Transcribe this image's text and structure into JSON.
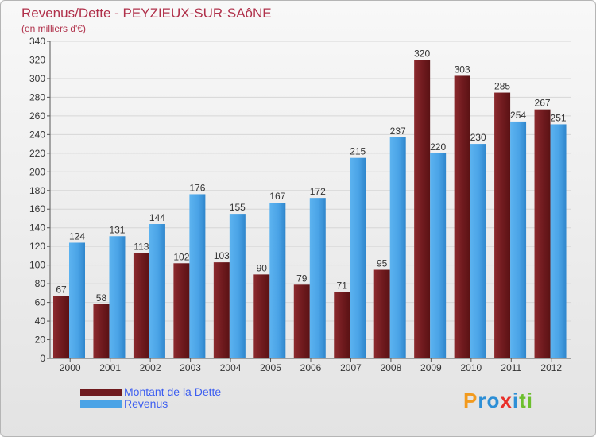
{
  "chart_data": {
    "type": "bar",
    "title": "Revenus/Dette - PEYZIEUX-SUR-SAôNE",
    "subtitle": "(en milliers d'€)",
    "categories": [
      "2000",
      "2001",
      "2002",
      "2003",
      "2004",
      "2005",
      "2006",
      "2007",
      "2008",
      "2009",
      "2010",
      "2011",
      "2012"
    ],
    "series": [
      {
        "name": "Montant de la Dette",
        "color": "#7a1f24",
        "values": [
          67,
          58,
          113,
          102,
          103,
          90,
          79,
          71,
          95,
          320,
          303,
          285,
          267
        ]
      },
      {
        "name": "Revenus",
        "color": "#4aa3e6",
        "values": [
          124,
          131,
          144,
          176,
          155,
          167,
          172,
          215,
          237,
          220,
          230,
          254,
          251
        ]
      }
    ],
    "ylim": [
      0,
      340
    ],
    "yticks": [
      0,
      20,
      40,
      60,
      80,
      100,
      120,
      140,
      160,
      180,
      200,
      220,
      240,
      260,
      280,
      300,
      320,
      340
    ],
    "grid": true,
    "legend": "bottom-left"
  },
  "logo": {
    "text": "Proxiti",
    "letters": [
      "P",
      "r",
      "o",
      "x",
      "i",
      "t",
      "i"
    ],
    "colors": [
      "#f29a1d",
      "#2d8fd6",
      "#2d8fd6",
      "#e9302a",
      "#2d8fd6",
      "#6cbf2e",
      "#6cbf2e"
    ]
  }
}
